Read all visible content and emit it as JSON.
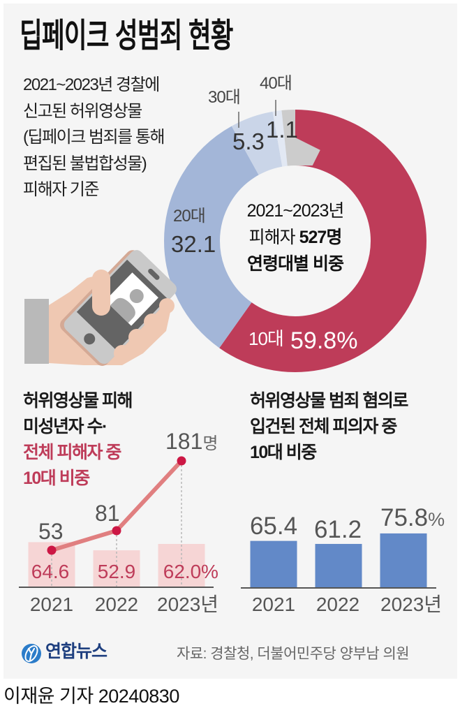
{
  "header": {
    "title": "딥페이크 성범죄 현황"
  },
  "intro": {
    "lines": [
      "2021~2023년 경찰에",
      "신고된 허위영상물",
      "(딥페이크 범죄를 통해",
      "편집된 불법합성물)",
      "피해자 기준"
    ]
  },
  "donut_center": {
    "line1": "2021~2023년",
    "line2_prefix": "피해자 ",
    "line2_strong": "527명",
    "line3": "연령대별 비중"
  },
  "left_panel": {
    "title_lines": [
      "허위영상물 피해",
      "미성년자 수·"
    ],
    "title_accent_lines": [
      "전체 피해자 중",
      "10대 비중"
    ]
  },
  "right_panel": {
    "title_lines": [
      "허위영상물 범죄 혐의로",
      "입건된 전체 피의자 중",
      "10대 비중"
    ]
  },
  "footer": {
    "logo_text": "연합뉴스",
    "source": "자료: 경찰청, 더불어민주당 양부남 의원",
    "byline": "이재윤 기자 20240830"
  },
  "colors": {
    "background": "#F5F5F5",
    "accent_red": "#BE3C59",
    "bar_blue": "#6289C8",
    "logo_blue": "#2B7CC9"
  },
  "chart_data": [
    {
      "type": "pie",
      "style": "donut",
      "title": "2021~2023년 피해자 527명 연령대별 비중",
      "unit": "%",
      "categories": [
        "10대",
        "20대",
        "30대",
        "40대",
        ""
      ],
      "values": [
        59.8,
        32.1,
        5.3,
        1.1,
        1.7
      ],
      "value_labels": [
        "59.8",
        "32.1",
        "5.3",
        "1.1",
        ""
      ],
      "colors": [
        "#BE3C59",
        "#A3B6D8",
        "#CAD5E8",
        "#E2E8F3",
        "#CCCCCC"
      ]
    },
    {
      "type": "bar+line",
      "title": "허위영상물 피해 미성년자 수·전체 피해자 중 10대 비중",
      "categories": [
        "2021",
        "2022",
        "2023년"
      ],
      "series": [
        {
          "name": "허위영상물 피해 미성년자 수",
          "type": "line",
          "unit": "명",
          "values": [
            53,
            81,
            181
          ],
          "labels": [
            "53",
            "81",
            "181"
          ],
          "color": "#E07F80",
          "marker_color": "#CC1744"
        },
        {
          "name": "전체 피해자 중 10대 비중",
          "type": "bar",
          "unit": "%",
          "values": [
            64.6,
            52.9,
            62.0
          ],
          "labels": [
            "64.6",
            "52.9",
            "62.0"
          ],
          "color": "#F6D5D5"
        }
      ]
    },
    {
      "type": "bar",
      "title": "허위영상물 범죄 혐의로 입건된 전체 피의자 중 10대 비중",
      "categories": [
        "2021",
        "2022",
        "2023년"
      ],
      "unit": "%",
      "values": [
        65.4,
        61.2,
        75.8
      ],
      "labels": [
        "65.4",
        "61.2",
        "75.8"
      ],
      "color": "#6289C8"
    }
  ]
}
